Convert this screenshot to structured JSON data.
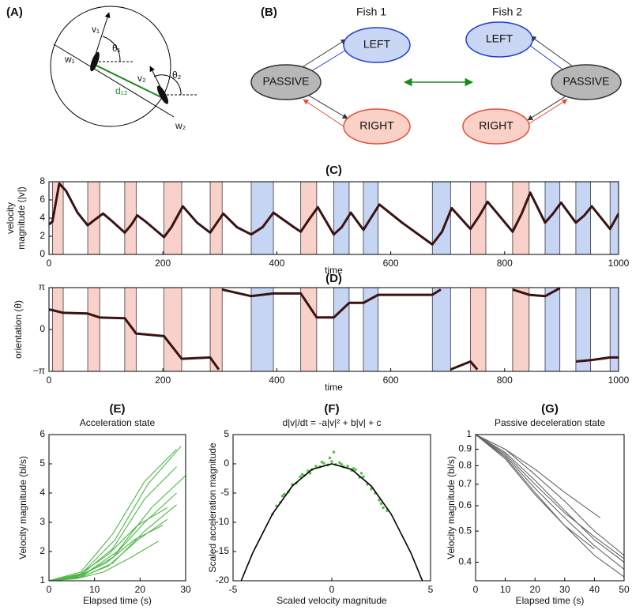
{
  "panel_a": {
    "label": "(A)",
    "v1": "v₁",
    "v2": "v₂",
    "theta1": "θ₁",
    "theta2": "θ₂",
    "w1": "w₁",
    "w2": "w₂",
    "d12": "d₁₂"
  },
  "panel_b": {
    "label": "(B)",
    "fish1": {
      "title": "Fish 1",
      "left": "LEFT",
      "passive": "PASSIVE",
      "right": "RIGHT"
    },
    "fish2": {
      "title": "Fish 2",
      "left": "LEFT",
      "passive": "PASSIVE",
      "right": "RIGHT"
    }
  },
  "chart_data": [
    {
      "type": "line",
      "title": "(C)",
      "ylabel": [
        "velocity",
        "magnitude (|v|)"
      ],
      "xlabel": "time",
      "xlim": [
        0,
        1000
      ],
      "xticks": [
        0,
        200,
        400,
        600,
        800,
        1000
      ],
      "ylim": [
        0,
        8
      ],
      "yticks": [
        0,
        2,
        4,
        6,
        8
      ],
      "bands": [
        {
          "x": [
            6,
            25
          ],
          "color": "#f8d2ca"
        },
        {
          "x": [
            68,
            89
          ],
          "color": "#f8d2ca"
        },
        {
          "x": [
            133,
            153
          ],
          "color": "#f8d2ca"
        },
        {
          "x": [
            202,
            233
          ],
          "color": "#f8d2ca"
        },
        {
          "x": [
            283,
            304
          ],
          "color": "#f8d2ca"
        },
        {
          "x": [
            355,
            394
          ],
          "color": "#c6d5f3"
        },
        {
          "x": [
            442,
            470
          ],
          "color": "#f8d2ca"
        },
        {
          "x": [
            500,
            527
          ],
          "color": "#c6d5f3"
        },
        {
          "x": [
            552,
            578
          ],
          "color": "#c6d5f3"
        },
        {
          "x": [
            673,
            705
          ],
          "color": "#c6d5f3"
        },
        {
          "x": [
            740,
            767
          ],
          "color": "#f8d2ca"
        },
        {
          "x": [
            814,
            843
          ],
          "color": "#f8d2ca"
        },
        {
          "x": [
            871,
            897
          ],
          "color": "#c6d5f3"
        },
        {
          "x": [
            925,
            951
          ],
          "color": "#c6d5f3"
        },
        {
          "x": [
            985,
            1000
          ],
          "color": "#c6d5f3"
        }
      ],
      "series": [
        {
          "color": "#3a1212",
          "x": [
            0,
            6,
            18,
            30,
            50,
            68,
            80,
            95,
            110,
            133,
            145,
            155,
            170,
            202,
            215,
            235,
            260,
            283,
            295,
            306,
            330,
            355,
            375,
            394,
            430,
            442,
            456,
            472,
            500,
            514,
            530,
            552,
            565,
            580,
            620,
            673,
            690,
            707,
            740,
            755,
            770,
            814,
            830,
            845,
            871,
            885,
            899,
            925,
            940,
            953,
            985,
            1000
          ],
          "values": [
            3.3,
            3.6,
            7.8,
            7.0,
            4.6,
            3.2,
            3.8,
            4.5,
            3.7,
            2.4,
            3.3,
            4.3,
            3.6,
            1.9,
            3.0,
            5.3,
            3.5,
            2.4,
            3.5,
            4.5,
            3.0,
            2.2,
            3.0,
            4.6,
            3.0,
            2.5,
            3.8,
            5.2,
            2.2,
            3.0,
            4.6,
            2.7,
            4.0,
            5.5,
            3.5,
            1.1,
            2.5,
            5.1,
            2.8,
            4.2,
            5.8,
            2.5,
            4.5,
            6.8,
            3.5,
            4.5,
            5.7,
            3.5,
            4.3,
            5.3,
            2.8,
            4.5
          ]
        }
      ]
    },
    {
      "type": "line",
      "title": "(D)",
      "ylabel": [
        "orientation (θ)"
      ],
      "xlabel": "time",
      "xlim": [
        0,
        1000
      ],
      "xticks": [
        0,
        200,
        400,
        600,
        800,
        1000
      ],
      "ylim": [
        -3.1416,
        3.1416
      ],
      "yticks": [
        {
          "value": 3.1416,
          "label": "π"
        },
        0,
        {
          "value": -3.1416,
          "label": "−π"
        }
      ],
      "bands": [
        {
          "x": [
            6,
            25
          ],
          "color": "#f8d2ca"
        },
        {
          "x": [
            68,
            89
          ],
          "color": "#f8d2ca"
        },
        {
          "x": [
            133,
            153
          ],
          "color": "#f8d2ca"
        },
        {
          "x": [
            202,
            233
          ],
          "color": "#f8d2ca"
        },
        {
          "x": [
            283,
            304
          ],
          "color": "#f8d2ca"
        },
        {
          "x": [
            355,
            394
          ],
          "color": "#c6d5f3"
        },
        {
          "x": [
            442,
            470
          ],
          "color": "#f8d2ca"
        },
        {
          "x": [
            500,
            527
          ],
          "color": "#c6d5f3"
        },
        {
          "x": [
            552,
            578
          ],
          "color": "#c6d5f3"
        },
        {
          "x": [
            673,
            705
          ],
          "color": "#c6d5f3"
        },
        {
          "x": [
            740,
            767
          ],
          "color": "#f8d2ca"
        },
        {
          "x": [
            814,
            843
          ],
          "color": "#f8d2ca"
        },
        {
          "x": [
            871,
            897
          ],
          "color": "#c6d5f3"
        },
        {
          "x": [
            925,
            951
          ],
          "color": "#c6d5f3"
        },
        {
          "x": [
            985,
            1000
          ],
          "color": "#c6d5f3"
        }
      ],
      "series": [
        {
          "color": "#3a1212",
          "x": [
            0,
            6,
            25,
            68,
            89,
            133,
            153,
            202,
            233,
            283,
            298,
            300,
            304,
            355,
            394,
            442,
            470,
            500,
            527,
            552,
            578,
            673,
            688,
            690,
            705,
            740,
            752,
            765,
            814,
            843,
            871,
            897,
            900,
            925,
            951,
            985,
            1000
          ],
          "values": [
            1.5,
            1.45,
            1.25,
            1.2,
            0.9,
            0.85,
            -0.3,
            -0.5,
            -2.2,
            -2.1,
            -3.0,
            null,
            3.0,
            2.5,
            2.7,
            2.7,
            0.9,
            0.9,
            2.0,
            2.0,
            2.6,
            2.6,
            3.0,
            null,
            -3.0,
            -2.4,
            -3.0,
            null,
            3.0,
            2.6,
            2.5,
            3.1,
            null,
            -2.4,
            -2.3,
            -2.1,
            -2.1
          ]
        }
      ]
    },
    {
      "type": "line",
      "title": "(E)",
      "subtitle": "Acceleration state",
      "ylabel": [
        "Velocity magnitude (bl/s)"
      ],
      "xlabel": "Elapsed time (s)",
      "xlim": [
        0,
        30
      ],
      "xticks": [
        0,
        10,
        20,
        30
      ],
      "ylim": [
        1,
        6
      ],
      "yticks": [
        1,
        2,
        3,
        4,
        5,
        6
      ],
      "color": "#4db848",
      "series": [
        {
          "x": [
            0,
            6,
            12,
            18,
            24
          ],
          "values": [
            1,
            1.07,
            1.3,
            1.8,
            2.35
          ]
        },
        {
          "x": [
            0,
            6.2,
            12.5,
            18.7,
            25
          ],
          "values": [
            1,
            1.15,
            1.6,
            2.4,
            2.9
          ]
        },
        {
          "x": [
            0,
            6.5,
            13,
            19.5,
            26
          ],
          "values": [
            1,
            1.1,
            1.5,
            2.4,
            3.1
          ]
        },
        {
          "x": [
            0,
            6.5,
            13,
            19.5,
            26
          ],
          "values": [
            1,
            1.2,
            1.9,
            2.9,
            3.5
          ]
        },
        {
          "x": [
            0,
            7,
            14,
            21,
            28
          ],
          "values": [
            1,
            1.12,
            1.6,
            2.7,
            3.6
          ]
        },
        {
          "x": [
            0,
            7,
            14,
            21,
            28
          ],
          "values": [
            1,
            1.15,
            1.8,
            3.0,
            4.0
          ]
        },
        {
          "x": [
            0,
            7.5,
            15,
            22.5,
            30
          ],
          "values": [
            1,
            1.2,
            2.0,
            3.5,
            4.6
          ]
        },
        {
          "x": [
            0,
            7,
            14,
            21,
            28
          ],
          "values": [
            1,
            1.2,
            2.1,
            3.8,
            4.9
          ]
        },
        {
          "x": [
            0,
            7,
            14,
            21,
            28
          ],
          "values": [
            1,
            1.3,
            2.6,
            4.4,
            5.5
          ]
        },
        {
          "x": [
            0,
            7.2,
            14.5,
            21.7,
            29
          ],
          "values": [
            1,
            1.25,
            2.4,
            4.3,
            5.6
          ]
        }
      ]
    },
    {
      "type": "scatter",
      "title": "(F)",
      "subtitle": "d|v|/dt = -a|v|² + b|v| + c",
      "ylabel": [
        "Scaled acceleration magnitude"
      ],
      "xlabel": "Scaled velocity magnitude",
      "xlim": [
        -5,
        5
      ],
      "xticks": [
        -5,
        0,
        5
      ],
      "ylim": [
        -20,
        5
      ],
      "yticks": [
        -20,
        -15,
        -10,
        -5,
        0,
        5
      ],
      "color": "#5cc24f",
      "x": [
        -3,
        -2.8,
        -2.6,
        -2.4,
        -2.2,
        -2,
        -1.8,
        -1.6,
        -1.4,
        -1.2,
        -1,
        -0.8,
        -0.6,
        -0.4,
        -0.2,
        0,
        0.2,
        0.4,
        0.6,
        0.8,
        1,
        1.2,
        1.4,
        1.6,
        1.8,
        2,
        2.2,
        2.4,
        2.6,
        2.8,
        -2.5,
        -1.5,
        -0.5,
        0.5,
        1.5,
        2.5,
        0.1,
        -0.1,
        1.1,
        -1.1
      ],
      "values": [
        -8.6,
        -7.2,
        -6.6,
        -5.2,
        -4.8,
        -3.5,
        -3.3,
        -2.2,
        -2.0,
        -1.2,
        -1.0,
        -0.4,
        -0.5,
        0.1,
        -0.2,
        0.4,
        -0.1,
        0.2,
        -0.5,
        -0.4,
        -1.1,
        -1.0,
        -2.3,
        -2.2,
        -3.5,
        -4.3,
        -5.0,
        -6.2,
        -7.5,
        -8.0,
        -5.5,
        -1.8,
        0.3,
        -0.1,
        -1.6,
        -6.8,
        2.0,
        1.0,
        -0.8,
        -1.6
      ],
      "fit": {
        "color": "#000000",
        "x": [
          -4.6,
          -4,
          -3,
          -2,
          -1,
          0,
          1,
          2,
          3,
          4,
          4.6
        ],
        "values": [
          -20.1,
          -15.2,
          -8.55,
          -3.8,
          -0.95,
          0,
          -0.95,
          -3.8,
          -8.55,
          -15.2,
          -20.1
        ]
      }
    },
    {
      "type": "line",
      "title": "(G)",
      "subtitle": "Passive deceleration state",
      "ylabel": [
        "Velocity magnitude (bl/s)"
      ],
      "xlabel": "Elapsed time (s)",
      "xlim": [
        0,
        50
      ],
      "xticks": [
        0,
        10,
        20,
        30,
        40,
        50
      ],
      "ylim": [
        0.35,
        1
      ],
      "ylog": true,
      "yticks": [
        0.4,
        0.5,
        0.6,
        0.7,
        0.8,
        0.9,
        1
      ],
      "color": "#666666",
      "series": [
        {
          "x": [
            0,
            10,
            20,
            30,
            40,
            50
          ],
          "values": [
            1,
            0.88,
            0.72,
            0.58,
            0.47,
            0.4
          ]
        },
        {
          "x": [
            0,
            10,
            20,
            30,
            40,
            50
          ],
          "values": [
            1,
            0.86,
            0.68,
            0.55,
            0.45,
            0.38
          ]
        },
        {
          "x": [
            0,
            10,
            20,
            30,
            40,
            50
          ],
          "values": [
            1,
            0.9,
            0.75,
            0.62,
            0.5,
            0.42
          ]
        },
        {
          "x": [
            0,
            10,
            20,
            30,
            40,
            50
          ],
          "values": [
            1,
            0.85,
            0.66,
            0.52,
            0.42,
            0.36
          ]
        },
        {
          "x": [
            0,
            10,
            20,
            30,
            42
          ],
          "values": [
            1,
            0.9,
            0.78,
            0.66,
            0.55
          ]
        },
        {
          "x": [
            0,
            10,
            20,
            30,
            40,
            50
          ],
          "values": [
            1,
            0.87,
            0.7,
            0.57,
            0.48,
            0.41
          ]
        },
        {
          "x": [
            0,
            10,
            20,
            30,
            40
          ],
          "values": [
            1,
            0.84,
            0.65,
            0.52,
            0.44
          ]
        }
      ]
    }
  ]
}
